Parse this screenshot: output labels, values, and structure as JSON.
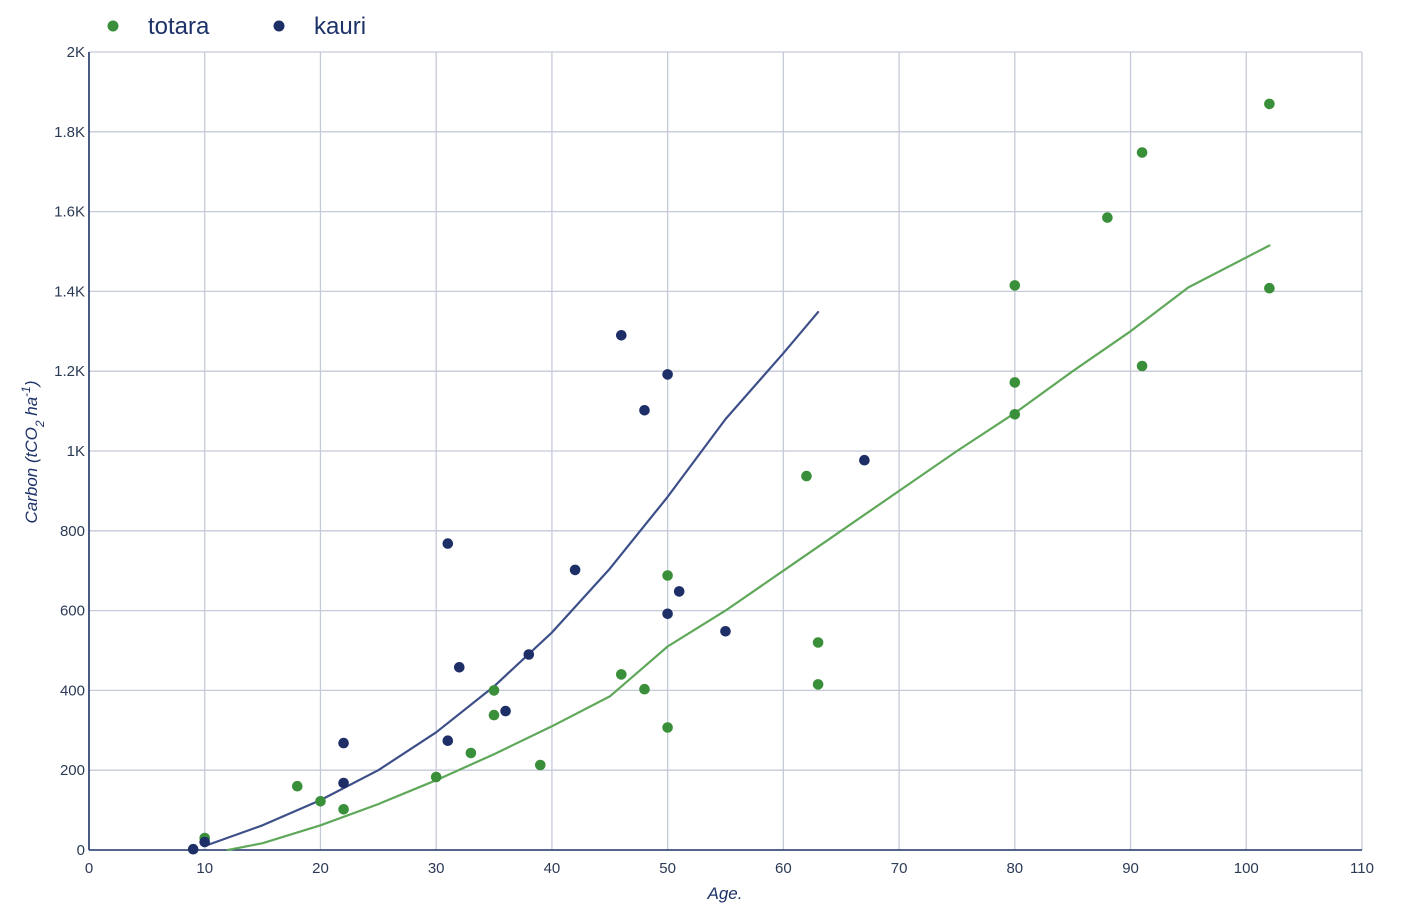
{
  "chart_data": {
    "type": "scatter",
    "title": "",
    "xlabel": "Age.",
    "ylabel": {
      "prefix": "Carbon (tCO",
      "sub": "2",
      "mid": " ha",
      "sup": "-1",
      "suffix": ")"
    },
    "xlim": [
      0,
      110
    ],
    "ylim": [
      0,
      2000
    ],
    "x_ticks": [
      {
        "value": 0,
        "label": "0"
      },
      {
        "value": 10,
        "label": "10"
      },
      {
        "value": 20,
        "label": "20"
      },
      {
        "value": 30,
        "label": "30"
      },
      {
        "value": 40,
        "label": "40"
      },
      {
        "value": 50,
        "label": "50"
      },
      {
        "value": 60,
        "label": "60"
      },
      {
        "value": 70,
        "label": "70"
      },
      {
        "value": 80,
        "label": "80"
      },
      {
        "value": 90,
        "label": "90"
      },
      {
        "value": 100,
        "label": "100"
      },
      {
        "value": 110,
        "label": "110"
      }
    ],
    "y_ticks": [
      {
        "value": 0,
        "label": "0"
      },
      {
        "value": 200,
        "label": "200"
      },
      {
        "value": 400,
        "label": "400"
      },
      {
        "value": 600,
        "label": "600"
      },
      {
        "value": 800,
        "label": "800"
      },
      {
        "value": 1000,
        "label": "1K"
      },
      {
        "value": 1200,
        "label": "1.2K"
      },
      {
        "value": 1400,
        "label": "1.4K"
      },
      {
        "value": 1600,
        "label": "1.6K"
      },
      {
        "value": 1800,
        "label": "1.8K"
      },
      {
        "value": 2000,
        "label": "2K"
      }
    ],
    "grid": true,
    "legend_position": "top-left",
    "series": [
      {
        "name": "totara",
        "color": "#3a8f3a",
        "line_color": "#5fa85a",
        "points": [
          [
            10,
            30
          ],
          [
            18,
            160
          ],
          [
            20,
            122
          ],
          [
            22,
            102
          ],
          [
            30,
            183
          ],
          [
            33,
            243
          ],
          [
            35,
            400
          ],
          [
            35,
            338
          ],
          [
            39,
            213
          ],
          [
            46,
            440
          ],
          [
            48,
            403
          ],
          [
            50,
            688
          ],
          [
            50,
            307
          ],
          [
            62,
            937
          ],
          [
            63,
            520
          ],
          [
            63,
            415
          ],
          [
            80,
            1415
          ],
          [
            80,
            1172
          ],
          [
            80,
            1092
          ],
          [
            88,
            1585
          ],
          [
            91,
            1748
          ],
          [
            91,
            1213
          ],
          [
            102,
            1870
          ],
          [
            102,
            1408
          ]
        ],
        "trend": [
          [
            12,
            0
          ],
          [
            15,
            17
          ],
          [
            20,
            62
          ],
          [
            25,
            115
          ],
          [
            30,
            175
          ],
          [
            35,
            240
          ],
          [
            40,
            310
          ],
          [
            45,
            385
          ],
          [
            50,
            510
          ],
          [
            55,
            600
          ],
          [
            60,
            700
          ],
          [
            65,
            800
          ],
          [
            70,
            900
          ],
          [
            75,
            1000
          ],
          [
            80,
            1095
          ],
          [
            85,
            1200
          ],
          [
            90,
            1300
          ],
          [
            95,
            1410
          ],
          [
            102,
            1515
          ]
        ]
      },
      {
        "name": "kauri",
        "color": "#1d2f66",
        "line_color": "#3d4f88",
        "points": [
          [
            9,
            2
          ],
          [
            10,
            20
          ],
          [
            22,
            268
          ],
          [
            22,
            168
          ],
          [
            31,
            768
          ],
          [
            31,
            274
          ],
          [
            32,
            458
          ],
          [
            36,
            348
          ],
          [
            38,
            490
          ],
          [
            42,
            702
          ],
          [
            46,
            1290
          ],
          [
            48,
            1102
          ],
          [
            50,
            1192
          ],
          [
            50,
            592
          ],
          [
            51,
            648
          ],
          [
            55,
            548
          ],
          [
            67,
            977
          ]
        ],
        "trend": [
          [
            10,
            10
          ],
          [
            15,
            62
          ],
          [
            20,
            125
          ],
          [
            25,
            200
          ],
          [
            30,
            295
          ],
          [
            35,
            410
          ],
          [
            40,
            545
          ],
          [
            45,
            705
          ],
          [
            50,
            885
          ],
          [
            55,
            1080
          ],
          [
            60,
            1245
          ],
          [
            63,
            1348
          ]
        ]
      }
    ]
  }
}
